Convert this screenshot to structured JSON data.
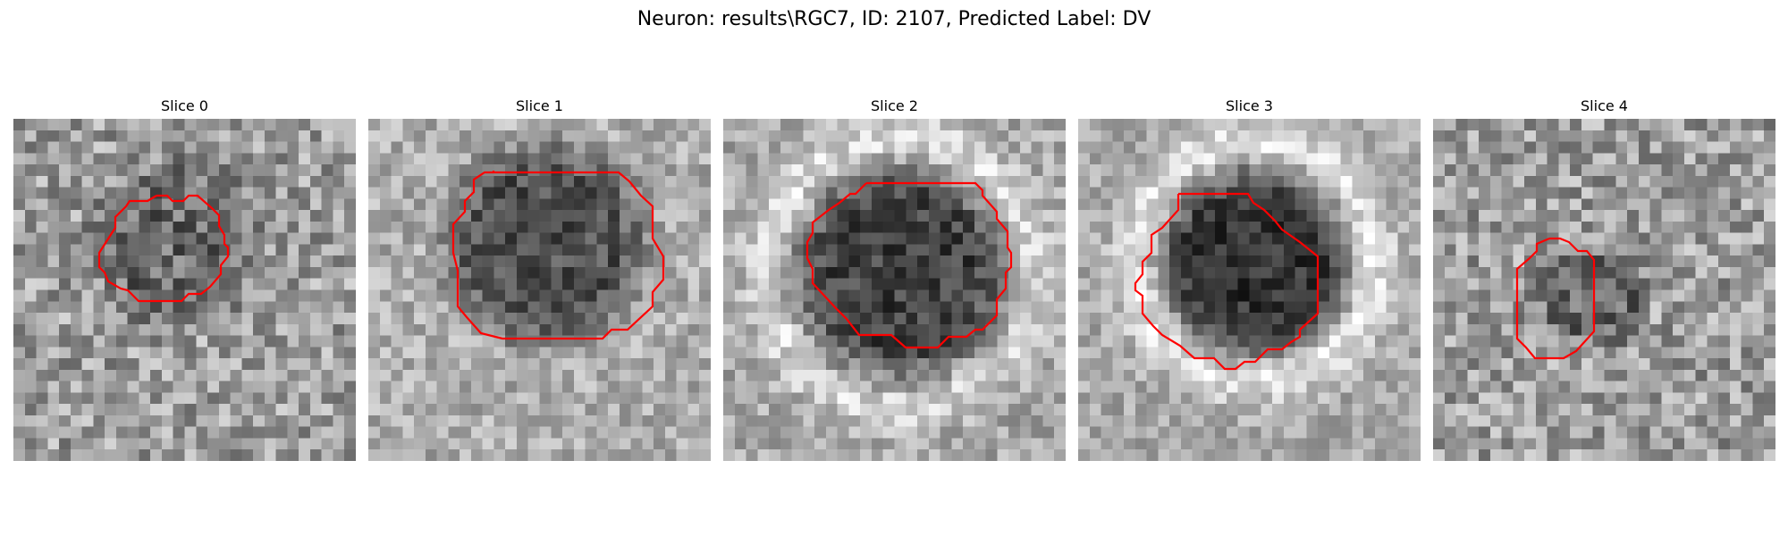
{
  "figure": {
    "title": "Neuron: results\\RGC7, ID: 2107, Predicted Label: DV",
    "contour_color": "#ff0000",
    "colormap": "gray"
  },
  "slices": [
    {
      "title": "Slice 0"
    },
    {
      "title": "Slice 1"
    },
    {
      "title": "Slice 2"
    },
    {
      "title": "Slice 3"
    },
    {
      "title": "Slice 4"
    }
  ]
}
